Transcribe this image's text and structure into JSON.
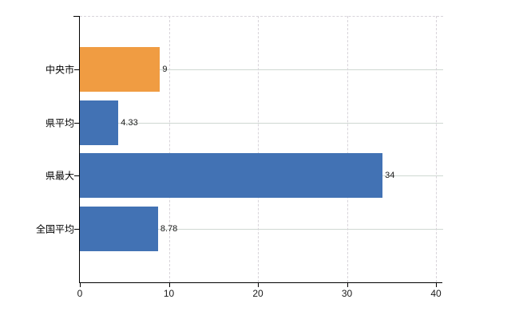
{
  "chart_data": {
    "type": "bar",
    "orientation": "horizontal",
    "title": "",
    "categories": [
      "中央市",
      "県平均",
      "県最大",
      "全国平均"
    ],
    "values": [
      9,
      4.33,
      34,
      8.78
    ],
    "value_labels": [
      "9",
      "4.33",
      "34",
      "8.78"
    ],
    "bar_colors": [
      "#F09C42",
      "#4272B4",
      "#4272B4",
      "#4272B4"
    ],
    "x_ticks": [
      0,
      10,
      20,
      30,
      40
    ],
    "x_tick_labels": [
      "0",
      "10",
      "20",
      "30",
      "40"
    ],
    "xlim": [
      0,
      40
    ],
    "grid": true,
    "legend": false
  },
  "colors": {
    "background": "#ffffff",
    "axis": "#000000",
    "grid_horizontal": "#cfd8d2",
    "grid_vertical": "#d8d4da",
    "top_border": "#d8d4da",
    "value_label": "#1a1a1a",
    "tick_label": "#1a1a1a",
    "category_label": "#000000"
  }
}
